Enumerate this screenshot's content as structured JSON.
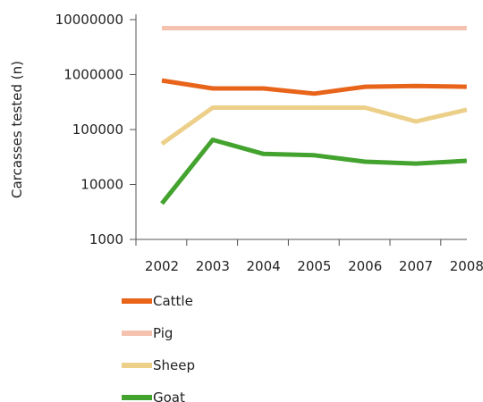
{
  "chart_data": {
    "type": "line",
    "title": "",
    "xlabel": "",
    "ylabel": "Carcasses tested (n)",
    "y_scale": "log",
    "ylim": [
      1000,
      10000000
    ],
    "y_ticks": [
      1000,
      10000,
      100000,
      1000000,
      10000000
    ],
    "y_tick_labels": [
      "1000",
      "10000",
      "100000",
      "1000000",
      "10000000"
    ],
    "categories": [
      "2002",
      "2003",
      "2004",
      "2005",
      "2006",
      "2007",
      "2008"
    ],
    "grid": false,
    "legend_position": "bottom",
    "series": [
      {
        "name": "Cattle",
        "color": "#e8641b",
        "values": [
          780000,
          560000,
          560000,
          450000,
          600000,
          620000,
          600000
        ]
      },
      {
        "name": "Pig",
        "color": "#f5c2b0",
        "values": [
          7000000,
          7000000,
          7000000,
          7000000,
          7000000,
          7000000,
          7000000
        ]
      },
      {
        "name": "Sheep",
        "color": "#ecd08a",
        "values": [
          55000,
          250000,
          250000,
          250000,
          250000,
          140000,
          230000
        ]
      },
      {
        "name": "Goat",
        "color": "#43a32e",
        "values": [
          4500,
          65000,
          36000,
          34000,
          26000,
          24000,
          27000
        ]
      }
    ]
  }
}
